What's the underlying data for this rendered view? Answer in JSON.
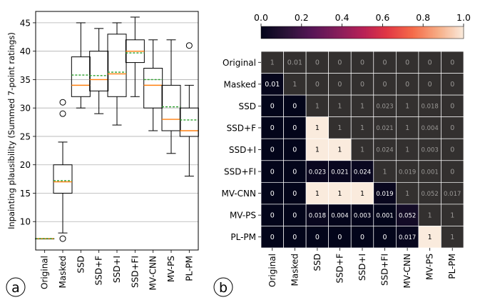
{
  "panel_a": {
    "tag": "a"
  },
  "panel_b": {
    "tag": "b"
  },
  "chart_data": [
    {
      "type": "box",
      "ylabel": "Inpainting plausibility (Summed 7-point ratings)",
      "ylim": [
        5,
        47
      ],
      "yticks": [
        10,
        15,
        20,
        25,
        30,
        35,
        40,
        45
      ],
      "grid": "horizontal",
      "median_color": "#ff7f0e",
      "mean_color": "#2ca02c",
      "categories": [
        "Original",
        "Masked",
        "SSD",
        "SSD+F",
        "SSD+I",
        "SSD+FI",
        "MV-CNN",
        "MV-PS",
        "PL-PM"
      ],
      "boxes": [
        {
          "whislo": 7,
          "q1": 7,
          "med": 7,
          "mean": 7,
          "q3": 7,
          "whishi": 7,
          "fliers": []
        },
        {
          "whislo": 8,
          "q1": 15,
          "med": 17,
          "mean": 17.2,
          "q3": 20,
          "whishi": 24,
          "fliers": [
            7,
            29,
            31
          ]
        },
        {
          "whislo": 30,
          "q1": 32,
          "med": 34,
          "mean": 35.8,
          "q3": 39,
          "whishi": 45,
          "fliers": []
        },
        {
          "whislo": 29,
          "q1": 33,
          "med": 35,
          "mean": 35.7,
          "q3": 40,
          "whishi": 44,
          "fliers": []
        },
        {
          "whislo": 27,
          "q1": 32,
          "med": 36,
          "mean": 36.3,
          "q3": 43,
          "whishi": 45,
          "fliers": []
        },
        {
          "whislo": 32,
          "q1": 38,
          "med": 40,
          "mean": 39.7,
          "q3": 42,
          "whishi": 46,
          "fliers": []
        },
        {
          "whislo": 26,
          "q1": 30,
          "med": 34,
          "mean": 35,
          "q3": 37,
          "whishi": 42,
          "fliers": []
        },
        {
          "whislo": 22,
          "q1": 26,
          "med": 28,
          "mean": 30.2,
          "q3": 34,
          "whishi": 42,
          "fliers": []
        },
        {
          "whislo": 18,
          "q1": 25,
          "med": 26,
          "mean": 27.9,
          "q3": 30,
          "whishi": 34,
          "fliers": [
            41
          ]
        }
      ]
    },
    {
      "type": "heatmap",
      "colormap": "rocket",
      "colorbar": {
        "min": 0,
        "max": 1,
        "ticks": [
          "0.0",
          "0.2",
          "0.4",
          "0.6",
          "0.8",
          "1.0"
        ],
        "placement": "top"
      },
      "rows": [
        "Original",
        "Masked",
        "SSD",
        "SSD+F",
        "SSD+I",
        "SSD+FI",
        "MV-CNN",
        "MV-PS",
        "PL-PM"
      ],
      "cols": [
        "Original",
        "Masked",
        "SSD",
        "SSD+F",
        "SSD+I",
        "SSD+FI",
        "MV-CNN",
        "MV-PS",
        "PL-PM"
      ],
      "values": [
        [
          1,
          0.01,
          0,
          0,
          0,
          0,
          0,
          0,
          0
        ],
        [
          0.01,
          1,
          0,
          0,
          0,
          0,
          0,
          0,
          0
        ],
        [
          0,
          0,
          1,
          1,
          1,
          0.023,
          1,
          0.018,
          0
        ],
        [
          0,
          0,
          1,
          1,
          1,
          0.021,
          1,
          0.004,
          0
        ],
        [
          0,
          0,
          1,
          1,
          1,
          0.024,
          1,
          0.003,
          0
        ],
        [
          0,
          0,
          0.023,
          0.021,
          0.024,
          1,
          0.019,
          0.001,
          0
        ],
        [
          0,
          0,
          1,
          1,
          1,
          0.019,
          1,
          0.052,
          0.017
        ],
        [
          0,
          0,
          0.018,
          0.004,
          0.003,
          0.001,
          0.052,
          1,
          1
        ],
        [
          0,
          0,
          0,
          0,
          0,
          0,
          0.017,
          1,
          1
        ]
      ],
      "labels": [
        [
          "1",
          "0.01",
          "0",
          "0",
          "0",
          "0",
          "0",
          "0",
          "0"
        ],
        [
          "0.01",
          "1",
          "0",
          "0",
          "0",
          "0",
          "0",
          "0",
          "0"
        ],
        [
          "0",
          "0",
          "1",
          "1",
          "1",
          "0.023",
          "1",
          "0.018",
          "0"
        ],
        [
          "0",
          "0",
          "1",
          "1",
          "1",
          "0.021",
          "1",
          "0.004",
          "0"
        ],
        [
          "0",
          "0",
          "1",
          "1",
          "1",
          "0.024",
          "1",
          "0.003",
          "0"
        ],
        [
          "0",
          "0",
          "0.023",
          "0.021",
          "0.024",
          "1",
          "0.019",
          "0.001",
          "0"
        ],
        [
          "0",
          "0",
          "1",
          "1",
          "1",
          "0.019",
          "1",
          "0.052",
          "0.017"
        ],
        [
          "0",
          "0",
          "0.018",
          "0.004",
          "0.003",
          "0.001",
          "0.052",
          "1",
          "1"
        ],
        [
          "0",
          "0",
          "0",
          "0",
          "0",
          "0",
          "0.017",
          "1",
          "1"
        ]
      ],
      "colored": "lower_triangle_only"
    }
  ]
}
